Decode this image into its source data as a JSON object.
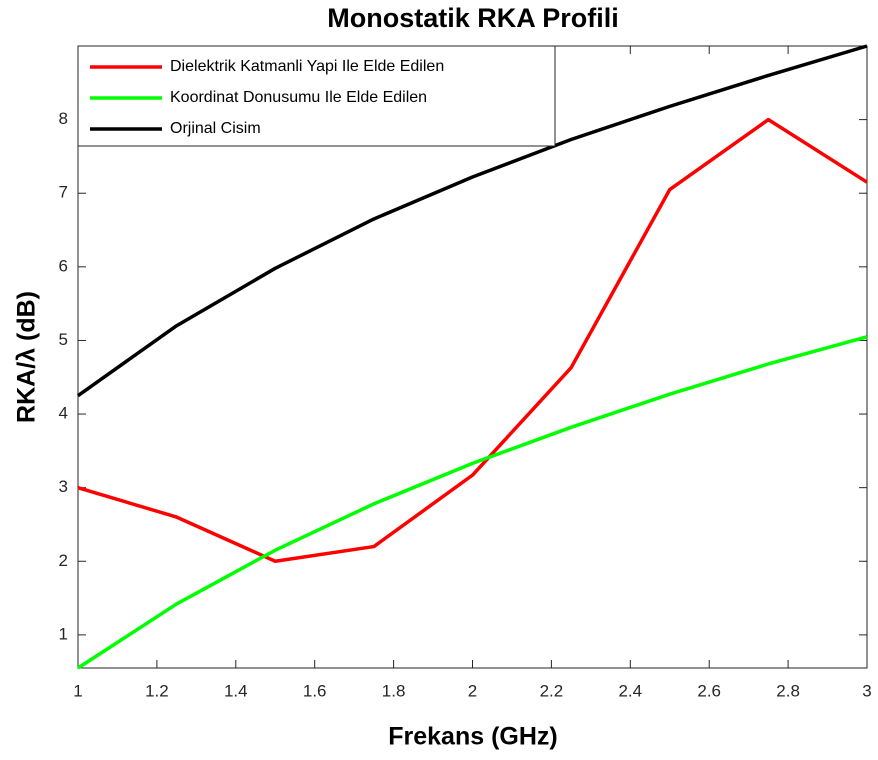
{
  "chart_data": {
    "type": "line",
    "title": "Monostatik RKA Profili",
    "x_label": "Frekans (GHz)",
    "y_label": "RKA/λ (dB)",
    "x": [
      1,
      1.25,
      1.5,
      1.75,
      2,
      2.25,
      2.5,
      2.75,
      3
    ],
    "series": [
      {
        "name": "Dielektrik Katmanli Yapi Ile Elde Edilen",
        "color": "#ff0000",
        "values": [
          3.0,
          2.6,
          2.0,
          2.2,
          3.17,
          4.63,
          7.05,
          8.0,
          7.15
        ]
      },
      {
        "name": "Koordinat Donusumu Ile Elde Edilen",
        "color": "#00ff00",
        "values": [
          0.55,
          1.42,
          2.15,
          2.78,
          3.33,
          3.82,
          4.27,
          4.68,
          5.05
        ]
      },
      {
        "name": "Orjinal Cisim",
        "color": "#000000",
        "values": [
          4.25,
          5.2,
          5.98,
          6.65,
          7.22,
          7.73,
          8.18,
          8.6,
          9.0
        ]
      }
    ],
    "xlim": [
      1,
      3
    ],
    "xticks": [
      1,
      1.2,
      1.4,
      1.6,
      1.8,
      2,
      2.2,
      2.4,
      2.6,
      2.8,
      3
    ],
    "ylim": [
      0.55,
      9
    ],
    "yticks": [
      1,
      2,
      3,
      4,
      5,
      6,
      7,
      8
    ],
    "legend": "top-left",
    "grid": false
  }
}
